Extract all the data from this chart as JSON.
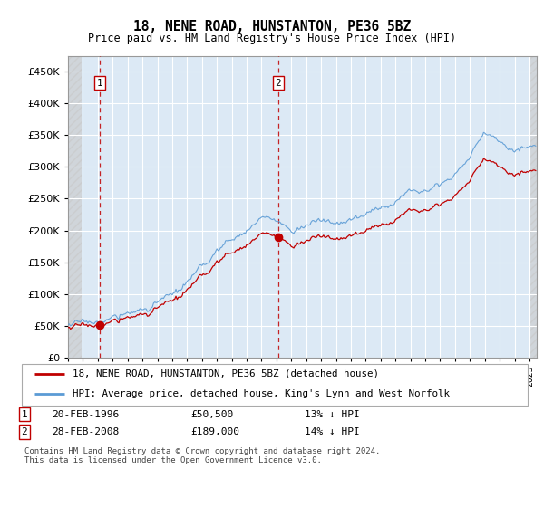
{
  "title": "18, NENE ROAD, HUNSTANTON, PE36 5BZ",
  "subtitle": "Price paid vs. HM Land Registry's House Price Index (HPI)",
  "legend_line1": "18, NENE ROAD, HUNSTANTON, PE36 5BZ (detached house)",
  "legend_line2": "HPI: Average price, detached house, King's Lynn and West Norfolk",
  "sale1_date": "20-FEB-1996",
  "sale1_price": 50500,
  "sale2_date": "28-FEB-2008",
  "sale2_price": 189000,
  "sale1_note": "13% ↓ HPI",
  "sale2_note": "14% ↓ HPI",
  "footer": "Contains HM Land Registry data © Crown copyright and database right 2024.\nThis data is licensed under the Open Government Licence v3.0.",
  "hpi_color": "#5b9bd5",
  "price_color": "#c00000",
  "ylim": [
    0,
    475000
  ],
  "yticks": [
    0,
    50000,
    100000,
    150000,
    200000,
    250000,
    300000,
    350000,
    400000,
    450000
  ],
  "xlim_start": 1994.0,
  "xlim_end": 2025.5,
  "bg_color": "#dce9f5",
  "hatch_color": "#c8c8c8"
}
